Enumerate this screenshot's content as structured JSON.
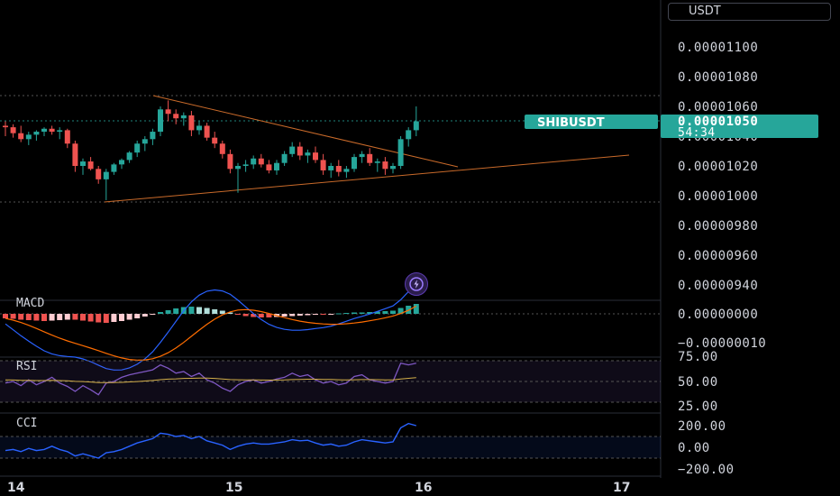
{
  "symbol": "SHIBUSDT",
  "currency_button": "USDT",
  "price_axis": {
    "labels": [
      "0.00001100",
      "0.00001080",
      "0.00001060",
      "0.00001040",
      "0.00001020",
      "0.00001000",
      "0.00000980",
      "0.00000960",
      "0.00000940"
    ],
    "current_price": "0.00001050",
    "countdown": "54:34"
  },
  "macd": {
    "label": "MACD",
    "axis_labels": [
      "0.00000000",
      "−0.00000010"
    ]
  },
  "rsi": {
    "label": "RSI",
    "axis_labels": [
      "75.00",
      "50.00",
      "25.00"
    ]
  },
  "cci": {
    "label": "CCI",
    "axis_labels": [
      "200.00",
      "0.00",
      "−200.00"
    ]
  },
  "time_axis": {
    "labels": [
      "14",
      "15",
      "16",
      "17"
    ]
  },
  "colors": {
    "up": "#26a69a",
    "down": "#ef5350",
    "trendline": "#c96a2a",
    "rsi_line": "#7e57c2",
    "rsi_ma": "#d4b04a",
    "cci_line": "#2962ff",
    "macd_line": "#2962ff",
    "signal_line": "#ff6d00",
    "price_tag": "#26a69a"
  },
  "chart_data": {
    "type": "candlestick",
    "x_ticks": [
      "14",
      "15",
      "16",
      "17"
    ],
    "y_range": [
      9.3e-06,
      1.11e-05
    ],
    "candles": [
      [
        1.047e-05,
        1.05e-05,
        1.04e-05,
        1.046e-05
      ],
      [
        1.046e-05,
        1.048e-05,
        1.039e-05,
        1.042e-05
      ],
      [
        1.042e-05,
        1.047e-05,
        1.036e-05,
        1.038e-05
      ],
      [
        1.038e-05,
        1.043e-05,
        1.034e-05,
        1.041e-05
      ],
      [
        1.041e-05,
        1.044e-05,
        1.037e-05,
        1.043e-05
      ],
      [
        1.043e-05,
        1.046e-05,
        1.04e-05,
        1.045e-05
      ],
      [
        1.045e-05,
        1.047e-05,
        1.041e-05,
        1.043e-05
      ],
      [
        1.043e-05,
        1.046e-05,
        1.038e-05,
        1.044e-05
      ],
      [
        1.044e-05,
        1.045e-05,
        1.032e-05,
        1.035e-05
      ],
      [
        1.035e-05,
        1.037e-05,
        1.016e-05,
        1.02e-05
      ],
      [
        1.02e-05,
        1.025e-05,
        1.014e-05,
        1.023e-05
      ],
      [
        1.023e-05,
        1.026e-05,
        1.017e-05,
        1.018e-05
      ],
      [
        1.018e-05,
        1.02e-05,
        1.008e-05,
        1.011e-05
      ],
      [
        1.011e-05,
        1.018e-05,
        9.97e-06,
        1.016e-05
      ],
      [
        1.016e-05,
        1.022e-05,
        1.014e-05,
        1.021e-05
      ],
      [
        1.021e-05,
        1.025e-05,
        1.018e-05,
        1.024e-05
      ],
      [
        1.024e-05,
        1.03e-05,
        1.022e-05,
        1.029e-05
      ],
      [
        1.029e-05,
        1.037e-05,
        1.026e-05,
        1.035e-05
      ],
      [
        1.035e-05,
        1.04e-05,
        1.03e-05,
        1.038e-05
      ],
      [
        1.038e-05,
        1.045e-05,
        1.034e-05,
        1.043e-05
      ],
      [
        1.043e-05,
        1.06e-05,
        1.04e-05,
        1.058e-05
      ],
      [
        1.058e-05,
        1.064e-05,
        1.05e-05,
        1.055e-05
      ],
      [
        1.055e-05,
        1.058e-05,
        1.048e-05,
        1.052e-05
      ],
      [
        1.052e-05,
        1.056e-05,
        1.047e-05,
        1.054e-05
      ],
      [
        1.054e-05,
        1.057e-05,
        1.04e-05,
        1.044e-05
      ],
      [
        1.044e-05,
        1.05e-05,
        1.041e-05,
        1.047e-05
      ],
      [
        1.047e-05,
        1.049e-05,
        1.037e-05,
        1.039e-05
      ],
      [
        1.039e-05,
        1.043e-05,
        1.032e-05,
        1.035e-05
      ],
      [
        1.035e-05,
        1.037e-05,
        1.025e-05,
        1.028e-05
      ],
      [
        1.028e-05,
        1.031e-05,
        1.015e-05,
        1.018e-05
      ],
      [
        1.018e-05,
        1.022e-05,
        1.002e-05,
        1.02e-05
      ],
      [
        1.02e-05,
        1.024e-05,
        1.016e-05,
        1.021e-05
      ],
      [
        1.021e-05,
        1.027e-05,
        1.018e-05,
        1.025e-05
      ],
      [
        1.025e-05,
        1.028e-05,
        1.019e-05,
        1.021e-05
      ],
      [
        1.021e-05,
        1.024e-05,
        1.015e-05,
        1.017e-05
      ],
      [
        1.017e-05,
        1.024e-05,
        1.014e-05,
        1.022e-05
      ],
      [
        1.022e-05,
        1.03e-05,
        1.02e-05,
        1.028e-05
      ],
      [
        1.028e-05,
        1.036e-05,
        1.026e-05,
        1.033e-05
      ],
      [
        1.033e-05,
        1.036e-05,
        1.024e-05,
        1.027e-05
      ],
      [
        1.027e-05,
        1.031e-05,
        1.022e-05,
        1.029e-05
      ],
      [
        1.029e-05,
        1.033e-05,
        1.022e-05,
        1.024e-05
      ],
      [
        1.024e-05,
        1.028e-05,
        1.014e-05,
        1.017e-05
      ],
      [
        1.017e-05,
        1.022e-05,
        1.012e-05,
        1.02e-05
      ],
      [
        1.02e-05,
        1.024e-05,
        1.013e-05,
        1.016e-05
      ],
      [
        1.016e-05,
        1.02e-05,
        1.012e-05,
        1.018e-05
      ],
      [
        1.018e-05,
        1.028e-05,
        1.016e-05,
        1.026e-05
      ],
      [
        1.026e-05,
        1.03e-05,
        1.022e-05,
        1.028e-05
      ],
      [
        1.028e-05,
        1.032e-05,
        1.02e-05,
        1.022e-05
      ],
      [
        1.022e-05,
        1.025e-05,
        1.016e-05,
        1.023e-05
      ],
      [
        1.023e-05,
        1.026e-05,
        1.014e-05,
        1.018e-05
      ],
      [
        1.018e-05,
        1.022e-05,
        1.015e-05,
        1.02e-05
      ],
      [
        1.02e-05,
        1.04e-05,
        1.018e-05,
        1.038e-05
      ],
      [
        1.038e-05,
        1.046e-05,
        1.033e-05,
        1.044e-05
      ],
      [
        1.044e-05,
        1.06e-05,
        1.04e-05,
        1.05e-05
      ]
    ],
    "macd_hist": [
      -1.0,
      -1.1,
      -1.3,
      -1.4,
      -1.5,
      -1.6,
      -1.5,
      -1.4,
      -1.3,
      -1.3,
      -1.5,
      -1.7,
      -1.9,
      -2.0,
      -1.8,
      -1.6,
      -1.3,
      -1.0,
      -0.6,
      -0.2,
      0.4,
      0.8,
      1.2,
      1.5,
      1.6,
      1.5,
      1.3,
      1.0,
      0.7,
      0.3,
      -0.2,
      -0.5,
      -0.7,
      -0.8,
      -0.8,
      -0.7,
      -0.6,
      -0.5,
      -0.4,
      -0.3,
      -0.2,
      -0.2,
      -0.1,
      0.1,
      0.2,
      0.3,
      0.3,
      0.4,
      0.5,
      0.6,
      0.7,
      1.3,
      1.8,
      2.2
    ],
    "rsi": [
      48,
      50,
      45,
      52,
      46,
      50,
      55,
      48,
      44,
      38,
      45,
      40,
      34,
      48,
      50,
      55,
      58,
      60,
      62,
      64,
      70,
      66,
      60,
      62,
      56,
      60,
      52,
      48,
      42,
      38,
      46,
      50,
      52,
      48,
      50,
      53,
      55,
      60,
      56,
      58,
      52,
      48,
      50,
      46,
      48,
      56,
      58,
      52,
      50,
      48,
      50,
      72,
      70,
      72
    ],
    "cci": [
      -30,
      -20,
      -40,
      -10,
      -30,
      -20,
      10,
      -20,
      -40,
      -80,
      -60,
      -80,
      -100,
      -50,
      -40,
      -20,
      10,
      40,
      60,
      80,
      130,
      120,
      100,
      110,
      80,
      100,
      60,
      40,
      20,
      -20,
      10,
      30,
      40,
      30,
      30,
      40,
      50,
      70,
      60,
      65,
      40,
      20,
      30,
      10,
      20,
      50,
      70,
      60,
      50,
      40,
      50,
      180,
      220,
      200
    ]
  }
}
